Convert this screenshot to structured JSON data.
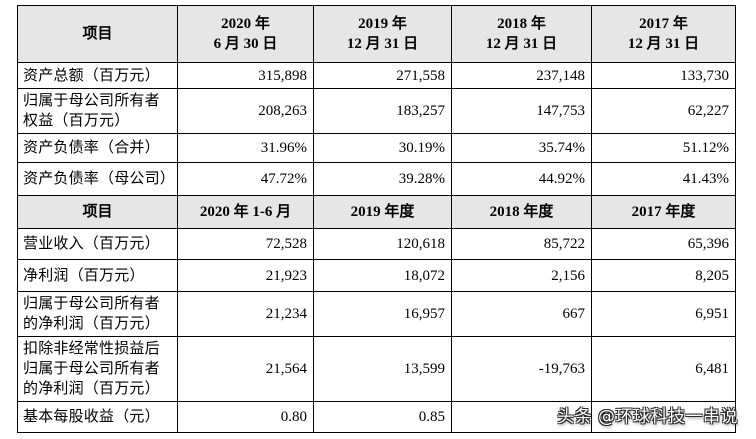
{
  "table": {
    "header_1": {
      "item_label": "项目",
      "periods": [
        {
          "lines": [
            "2020 年",
            "6 月 30 日"
          ]
        },
        {
          "lines": [
            "2019 年",
            "12 月 31 日"
          ]
        },
        {
          "lines": [
            "2018 年",
            "12 月 31 日"
          ]
        },
        {
          "lines": [
            "2017 年",
            "12 月 31 日"
          ]
        }
      ]
    },
    "balance_rows": [
      {
        "label_lines": [
          "资产总额（百万元）"
        ],
        "values": [
          "315,898",
          "271,558",
          "237,148",
          "133,730"
        ]
      },
      {
        "label_lines": [
          "归属于母公司所有者",
          "权益（百万元）"
        ],
        "values": [
          "208,263",
          "183,257",
          "147,753",
          "62,227"
        ]
      },
      {
        "label_lines": [
          "资产负债率（合并）"
        ],
        "values": [
          "31.96%",
          "30.19%",
          "35.74%",
          "51.12%"
        ]
      },
      {
        "label_lines": [
          "资产负债率（母公司）"
        ],
        "values": [
          "47.72%",
          "39.28%",
          "44.92%",
          "41.43%"
        ]
      }
    ],
    "header_2": {
      "item_label": "项目",
      "periods": [
        "2020 年 1-6 月",
        "2019 年度",
        "2018 年度",
        "2017 年度"
      ]
    },
    "income_rows": [
      {
        "label_lines": [
          "营业收入（百万元）"
        ],
        "values": [
          "72,528",
          "120,618",
          "85,722",
          "65,396"
        ]
      },
      {
        "label_lines": [
          "净利润（百万元）"
        ],
        "values": [
          "21,923",
          "18,072",
          "2,156",
          "8,205"
        ]
      },
      {
        "label_lines": [
          "归属于母公司所有者",
          "的净利润（百万元）"
        ],
        "values": [
          "21,234",
          "16,957",
          "667",
          "6,951"
        ]
      },
      {
        "label_lines": [
          "扣除非经常性损益后",
          "归属于母公司所有者",
          "的净利润（百万元）"
        ],
        "values": [
          "21,564",
          "13,599",
          "-19,763",
          "6,481"
        ]
      },
      {
        "label_lines": [
          "基本每股收益（元）"
        ],
        "values": [
          "0.80",
          "0.85"
        ]
      }
    ]
  },
  "watermark": {
    "text": "头条 @环球科技一串说"
  }
}
